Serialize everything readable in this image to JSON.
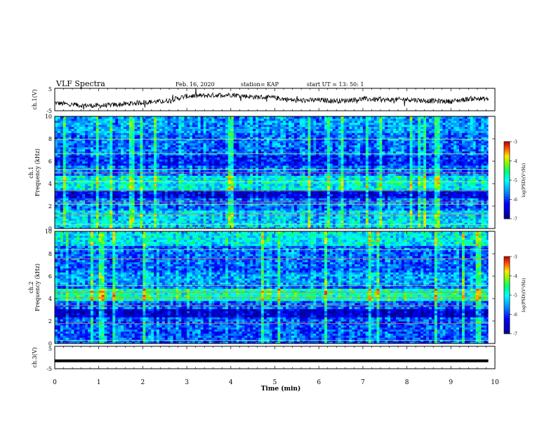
{
  "header": {
    "title": "VLF Spectra",
    "date": "Feb. 16, 2020",
    "station": "station= KAP",
    "start": "start UT = 13: 50: 1"
  },
  "chart_data": [
    {
      "type": "line",
      "ylabel": "ch.1(V)",
      "ylim": [
        -5,
        5
      ],
      "yticks": [
        "5",
        "-5"
      ],
      "xlim": [
        0,
        10
      ],
      "note": "time series waveform, values approx in volts",
      "x": [
        0,
        0.5,
        1,
        1.5,
        2,
        2.5,
        3,
        3.5,
        4,
        4.5,
        5,
        5.5,
        6,
        6.5,
        7,
        7.5,
        8,
        8.5,
        9,
        9.5,
        9.85
      ],
      "y": [
        -1.5,
        -2.5,
        -2.8,
        -2.2,
        -1.2,
        -0.8,
        1.5,
        1.8,
        2.2,
        1.2,
        0.8,
        -0.5,
        -0.2,
        -0.6,
        0.3,
        -0.2,
        0.1,
        -0.6,
        -0.8,
        0.5,
        0.2
      ]
    },
    {
      "type": "heatmap",
      "ylabel": "ch.1 Frequency (kHz)",
      "ylim": [
        0,
        10
      ],
      "yticks": [
        "0",
        "2",
        "4",
        "6",
        "8",
        "10"
      ],
      "xlim": [
        0,
        10
      ],
      "colorbar": {
        "label": "log(PSD)(V²/Hz)",
        "range": [
          -7,
          -3
        ],
        "ticks": [
          "-3",
          "-4",
          "-5",
          "-6",
          "-7"
        ]
      }
    },
    {
      "type": "heatmap",
      "ylabel": "ch.2 Frequency (kHz)",
      "ylim": [
        0,
        10
      ],
      "yticks": [
        "0",
        "2",
        "4",
        "6",
        "8",
        "10"
      ],
      "xlim": [
        0,
        10
      ],
      "colorbar": {
        "label": "log(PSD)(V²/Hz)",
        "range": [
          -7,
          -3
        ],
        "ticks": [
          "-3",
          "-4",
          "-5",
          "-6",
          "-7"
        ]
      }
    },
    {
      "type": "line",
      "ylabel": "ch.3(V)",
      "ylim": [
        -5,
        5
      ],
      "yticks": [
        "5",
        "-5"
      ],
      "xlim": [
        0,
        10
      ],
      "x": [
        0,
        9.85
      ],
      "y": [
        -1.5,
        -1.5
      ]
    }
  ],
  "xaxis": {
    "label": "Time (min)",
    "ticks": [
      "0",
      "1",
      "2",
      "3",
      "4",
      "5",
      "6",
      "7",
      "8",
      "9",
      "10"
    ]
  }
}
